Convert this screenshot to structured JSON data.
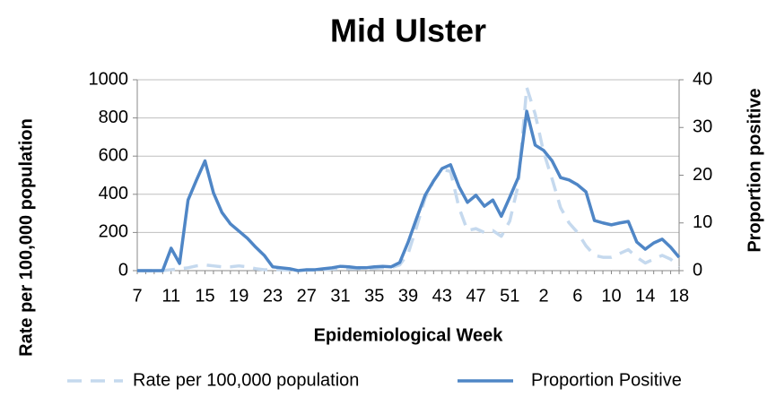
{
  "chart_data": {
    "type": "line",
    "title": "Mid Ulster",
    "x_label": "Epidemiological Week",
    "y_label": "Rate per 100,000 population",
    "y2_label": "Proportion positive",
    "categories": [
      "7",
      null,
      null,
      null,
      "11",
      null,
      null,
      null,
      "15",
      null,
      null,
      null,
      "19",
      null,
      null,
      null,
      "23",
      null,
      null,
      null,
      "27",
      null,
      null,
      null,
      "31",
      null,
      null,
      null,
      "35",
      null,
      null,
      null,
      "39",
      null,
      null,
      null,
      "43",
      null,
      null,
      null,
      "47",
      null,
      null,
      null,
      "51",
      null,
      null,
      null,
      "2",
      null,
      null,
      null,
      "6",
      null,
      null,
      null,
      "10",
      null,
      null,
      null,
      "14",
      null,
      null,
      null,
      "18"
    ],
    "series": [
      {
        "name": "Rate per 100,000 population",
        "color": "#c5d9ee",
        "dashed": true,
        "axis": "y",
        "values": [
          0,
          0,
          0,
          0,
          5,
          10,
          15,
          25,
          30,
          25,
          20,
          20,
          25,
          20,
          10,
          5,
          5,
          5,
          3,
          2,
          2,
          3,
          5,
          8,
          10,
          10,
          10,
          10,
          12,
          15,
          15,
          30,
          90,
          230,
          380,
          470,
          530,
          520,
          330,
          210,
          220,
          200,
          210,
          180,
          260,
          450,
          960,
          820,
          620,
          480,
          330,
          250,
          200,
          130,
          80,
          70,
          70,
          90,
          110,
          70,
          40,
          60,
          80,
          60,
          20
        ]
      },
      {
        "name": "Proportion Positive",
        "color": "#4f86c6",
        "dashed": false,
        "axis": "y2",
        "values": [
          0,
          0,
          0,
          0,
          4.7,
          1.5,
          14.8,
          19,
          23,
          16.3,
          12.2,
          9.8,
          8.3,
          6.8,
          4.9,
          3.2,
          0.8,
          0.6,
          0.4,
          0,
          0.2,
          0.2,
          0.4,
          0.6,
          0.9,
          0.8,
          0.6,
          0.6,
          0.8,
          0.9,
          0.8,
          1.7,
          6,
          11,
          15.8,
          18.8,
          21.4,
          22.2,
          17.6,
          14.3,
          15.8,
          13.5,
          14.8,
          11.4,
          15.4,
          19.5,
          33.4,
          26.3,
          25.2,
          23,
          19.5,
          19,
          18,
          16.5,
          10.5,
          10,
          9.6,
          10,
          10.3,
          6,
          4.5,
          5.8,
          6.6,
          4.9,
          2.8
        ]
      }
    ],
    "ylim": [
      0,
      1000
    ],
    "yticks": [
      0,
      200,
      400,
      600,
      800,
      1000
    ],
    "y2lim": [
      0,
      40
    ],
    "y2ticks": [
      0,
      10,
      20,
      30,
      40
    ],
    "grid": true
  }
}
